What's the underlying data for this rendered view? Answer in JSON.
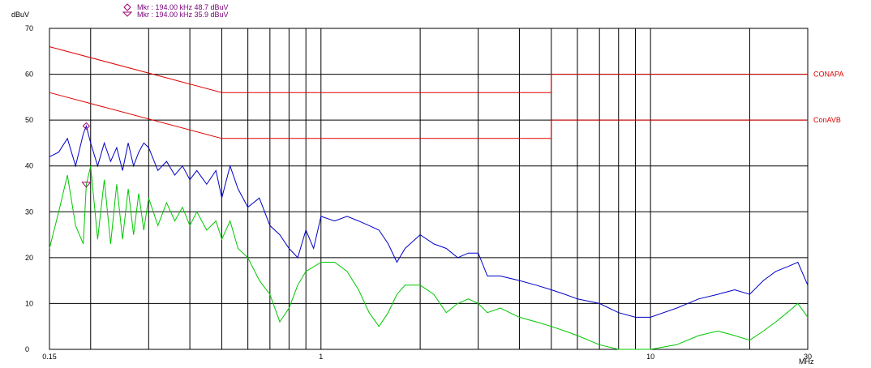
{
  "chart_data": {
    "type": "line",
    "title": "",
    "ylabel": "dBuV",
    "xunit": "MHz",
    "xscale": "log",
    "xlim": [
      0.15,
      30
    ],
    "ylim": [
      0,
      70
    ],
    "yticks": [
      0,
      10,
      20,
      30,
      40,
      50,
      60,
      70
    ],
    "xtick_labels": [
      {
        "value": 0.15,
        "label": "0.15"
      },
      {
        "value": 1,
        "label": "1"
      },
      {
        "value": 10,
        "label": "10"
      },
      {
        "value": 30,
        "label": "30"
      }
    ],
    "x_gridlines": [
      0.2,
      0.3,
      0.4,
      0.5,
      0.6,
      0.7,
      0.8,
      0.9,
      1,
      2,
      3,
      4,
      5,
      6,
      7,
      8,
      9,
      10,
      20
    ],
    "grid": true,
    "markers": [
      {
        "symbol": "diamond",
        "text": "Mkr : 194.00 kHz 48.7 dBuV",
        "x": 0.194,
        "y": 48.7
      },
      {
        "symbol": "triangle-down",
        "text": "Mkr : 194.00 kHz 35.9 dBuV",
        "x": 0.194,
        "y": 35.9
      }
    ],
    "series": [
      {
        "name": "CONAPA",
        "color": "#e00000",
        "label_pos": "right",
        "x": [
          0.15,
          0.5,
          0.5,
          5,
          5,
          30
        ],
        "y": [
          66,
          56,
          56,
          56,
          60,
          60
        ]
      },
      {
        "name": "ConAVB",
        "color": "#e00000",
        "label_pos": "right",
        "x": [
          0.15,
          0.5,
          0.5,
          5,
          5,
          30
        ],
        "y": [
          56,
          46,
          46,
          46,
          50,
          50
        ]
      },
      {
        "name": "",
        "color": "#0000c8",
        "x": [
          0.15,
          0.16,
          0.17,
          0.18,
          0.19,
          0.194,
          0.2,
          0.21,
          0.22,
          0.23,
          0.24,
          0.25,
          0.26,
          0.27,
          0.28,
          0.29,
          0.3,
          0.32,
          0.34,
          0.36,
          0.38,
          0.4,
          0.42,
          0.45,
          0.48,
          0.5,
          0.53,
          0.56,
          0.6,
          0.65,
          0.7,
          0.75,
          0.8,
          0.85,
          0.9,
          0.95,
          1.0,
          1.1,
          1.2,
          1.3,
          1.4,
          1.5,
          1.6,
          1.7,
          1.8,
          2.0,
          2.2,
          2.4,
          2.6,
          2.8,
          3.0,
          3.2,
          3.5,
          4.0,
          4.5,
          5.0,
          5.5,
          6.0,
          7.0,
          8.0,
          9.0,
          10,
          12,
          14,
          16,
          18,
          20,
          22,
          24,
          26,
          28,
          30
        ],
        "y": [
          42,
          43,
          46,
          40,
          47,
          48.7,
          45,
          40,
          45,
          41,
          44,
          39,
          45,
          40,
          43,
          45,
          44,
          39,
          41,
          38,
          40,
          37,
          39,
          36,
          39,
          33,
          40,
          35,
          31,
          33,
          27,
          25,
          22,
          20,
          26,
          22,
          29,
          28,
          29,
          28,
          27,
          26,
          23,
          19,
          22,
          25,
          23,
          22,
          20,
          21,
          21,
          16,
          16,
          15,
          14,
          13,
          12,
          11,
          10,
          8,
          7,
          7,
          9,
          11,
          12,
          13,
          12,
          15,
          17,
          18,
          19,
          14
        ]
      },
      {
        "name": "",
        "color": "#00c800",
        "x": [
          0.15,
          0.16,
          0.17,
          0.18,
          0.19,
          0.194,
          0.2,
          0.21,
          0.22,
          0.23,
          0.24,
          0.25,
          0.26,
          0.27,
          0.28,
          0.29,
          0.3,
          0.32,
          0.34,
          0.36,
          0.38,
          0.4,
          0.42,
          0.45,
          0.48,
          0.5,
          0.53,
          0.56,
          0.6,
          0.65,
          0.7,
          0.75,
          0.8,
          0.85,
          0.9,
          0.95,
          1.0,
          1.1,
          1.2,
          1.3,
          1.4,
          1.5,
          1.6,
          1.7,
          1.8,
          2.0,
          2.2,
          2.4,
          2.6,
          2.8,
          3.0,
          3.2,
          3.5,
          4.0,
          4.5,
          5.0,
          5.5,
          6.0,
          7.0,
          8.0,
          9.0,
          10,
          12,
          14,
          16,
          18,
          20,
          22,
          24,
          26,
          28,
          30
        ],
        "y": [
          22,
          30,
          38,
          27,
          23,
          35.9,
          40,
          24,
          37,
          23,
          36,
          24,
          35,
          25,
          34,
          26,
          33,
          27,
          32,
          28,
          31,
          27,
          30,
          26,
          28,
          24,
          28,
          22,
          20,
          15,
          12,
          6,
          9,
          14,
          17,
          18,
          19,
          19,
          17,
          13,
          8,
          5,
          8,
          12,
          14,
          14,
          12,
          8,
          10,
          11,
          10,
          8,
          9,
          7,
          6,
          5,
          4,
          3,
          1,
          0,
          0,
          0,
          1,
          3,
          4,
          3,
          2,
          4,
          6,
          8,
          10,
          7
        ]
      }
    ]
  }
}
